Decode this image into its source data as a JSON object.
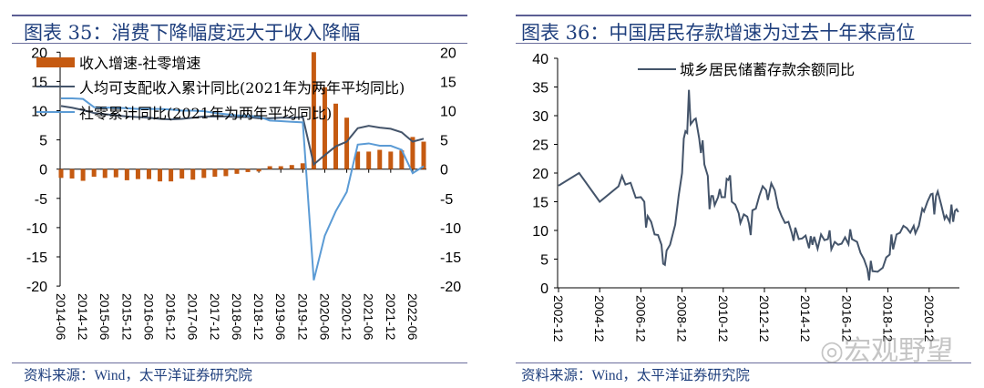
{
  "left_panel": {
    "title": "图表 35：消费下降幅度远大于收入降幅",
    "source": "资料来源：Wind，太平洋证券研究院"
  },
  "right_panel": {
    "title": "图表 36：中国居民存款增速为过去十年来高位",
    "source": "资料来源：Wind，太平洋证券研究院"
  },
  "watermark": "宏观野望",
  "colors": {
    "bar": "#c55a11",
    "income": "#44546a",
    "retail": "#5b9bd5",
    "deposit": "#44546a",
    "title": "#1f3f7d"
  },
  "chart_data": [
    {
      "type": "bar+line",
      "title": "",
      "xlabel": "",
      "ylabel": "",
      "ylim": [
        -20,
        20
      ],
      "y2lim": [
        -20,
        20
      ],
      "yticks": [
        "20",
        "15",
        "10",
        "5",
        "0",
        "-5",
        "-10",
        "-15",
        "-20"
      ],
      "x_tick_labels": [
        "2014-06",
        "2014-12",
        "2015-06",
        "2015-12",
        "2016-06",
        "2016-12",
        "2017-06",
        "2017-12",
        "2018-06",
        "2018-12",
        "2019-06",
        "2019-12",
        "2020-06",
        "2020-12",
        "2021-06",
        "2021-12",
        "2022-06"
      ],
      "x": [
        "2014-06",
        "2014-09",
        "2014-12",
        "2015-03",
        "2015-06",
        "2015-09",
        "2015-12",
        "2016-03",
        "2016-06",
        "2016-09",
        "2016-12",
        "2017-03",
        "2017-06",
        "2017-09",
        "2017-12",
        "2018-03",
        "2018-06",
        "2018-09",
        "2018-12",
        "2019-03",
        "2019-06",
        "2019-09",
        "2019-12",
        "2020-03",
        "2020-06",
        "2020-09",
        "2020-12",
        "2021-03",
        "2021-06",
        "2021-09",
        "2021-12",
        "2022-03",
        "2022-06",
        "2022-09"
      ],
      "legend_position": "top-left",
      "series": [
        {
          "name": "收入增速-社零增速",
          "type": "bar",
          "axis": "left",
          "values": [
            -1.5,
            -1.6,
            -2.0,
            -1.3,
            -1.5,
            -1.4,
            -1.9,
            -1.7,
            -1.7,
            -2.1,
            -2.1,
            -1.6,
            -1.8,
            -1.5,
            -1.3,
            -1.2,
            -0.8,
            -0.5,
            -0.4,
            0.5,
            0.5,
            0.7,
            1.0,
            20.0,
            14.0,
            11.2,
            8.8,
            3.0,
            3.0,
            3.3,
            3.0,
            3.2,
            5.5,
            4.7
          ]
        },
        {
          "name": "人均可支配收入累计同比(2021年为两年平均同比)",
          "type": "line",
          "axis": "left",
          "values": [
            10.8,
            10.5,
            10.1,
            9.6,
            9.4,
            9.2,
            9.0,
            8.9,
            8.8,
            8.6,
            8.5,
            8.6,
            8.8,
            9.0,
            9.0,
            9.0,
            8.9,
            8.9,
            8.7,
            8.7,
            8.8,
            8.8,
            8.9,
            0.8,
            2.4,
            3.9,
            4.7,
            7.0,
            7.4,
            7.1,
            6.9,
            6.3,
            4.7,
            5.2
          ]
        },
        {
          "name": "社零累计同比(2021年为两年平均同比)",
          "type": "line",
          "axis": "left",
          "values": [
            12.1,
            12.1,
            12.0,
            10.6,
            10.5,
            10.5,
            10.4,
            10.3,
            10.3,
            10.3,
            10.2,
            10.0,
            10.0,
            9.9,
            9.6,
            9.4,
            9.2,
            9.1,
            9.0,
            8.3,
            8.2,
            8.1,
            8.0,
            -19.0,
            -11.4,
            -7.2,
            -3.9,
            4.2,
            4.4,
            4.0,
            4.0,
            3.3,
            -0.7,
            0.5
          ]
        }
      ]
    },
    {
      "type": "line",
      "title": "",
      "xlabel": "",
      "ylabel": "",
      "ylim": [
        0,
        40
      ],
      "yticks": [
        "40",
        "35",
        "30",
        "25",
        "20",
        "15",
        "10",
        "5",
        "0"
      ],
      "x_tick_labels": [
        "2002-12",
        "2004-12",
        "2006-12",
        "2008-12",
        "2010-12",
        "2012-12",
        "2014-12",
        "2016-12",
        "2018-12",
        "2020-12"
      ],
      "legend_position": "top-center",
      "series": [
        {
          "name": "城乡居民储蓄存款余额同比",
          "points": [
            [
              "2002-12",
              17.8
            ],
            [
              "2003-12",
              20
            ],
            [
              "2004-12",
              15
            ],
            [
              "2005-11",
              17.7
            ],
            [
              "2006-01",
              19.5
            ],
            [
              "2006-03",
              18
            ],
            [
              "2006-06",
              18.3
            ],
            [
              "2006-09",
              15.7
            ],
            [
              "2006-12",
              15.8
            ],
            [
              "2007-02",
              15
            ],
            [
              "2007-03",
              10.5
            ],
            [
              "2007-04",
              12.5
            ],
            [
              "2007-06",
              11.5
            ],
            [
              "2007-08",
              9.3
            ],
            [
              "2007-10",
              9.2
            ],
            [
              "2007-12",
              7.5
            ],
            [
              "2008-01",
              4.2
            ],
            [
              "2008-02",
              4.0
            ],
            [
              "2008-03",
              6.5
            ],
            [
              "2008-05",
              7.5
            ],
            [
              "2008-08",
              11
            ],
            [
              "2008-10",
              16
            ],
            [
              "2008-12",
              20
            ],
            [
              "2009-01",
              26
            ],
            [
              "2009-02",
              27.3
            ],
            [
              "2009-03",
              27
            ],
            [
              "2009-04",
              34.5
            ],
            [
              "2009-05",
              28.5
            ],
            [
              "2009-07",
              29.3
            ],
            [
              "2009-08",
              29.5
            ],
            [
              "2009-10",
              26
            ],
            [
              "2009-11",
              23.5
            ],
            [
              "2009-12",
              25.7
            ],
            [
              "2010-01",
              21.5
            ],
            [
              "2010-03",
              19.5
            ],
            [
              "2010-04",
              13.7
            ],
            [
              "2010-05",
              16
            ],
            [
              "2010-06",
              16
            ],
            [
              "2010-07",
              14.4
            ],
            [
              "2010-09",
              15.8
            ],
            [
              "2010-10",
              17.2
            ],
            [
              "2010-11",
              15.8
            ],
            [
              "2011-01",
              15.8
            ],
            [
              "2011-02",
              19
            ],
            [
              "2011-03",
              18.8
            ],
            [
              "2011-04",
              19.6
            ],
            [
              "2011-05",
              15
            ],
            [
              "2011-07",
              14.5
            ],
            [
              "2011-09",
              13
            ],
            [
              "2011-10",
              11.3
            ],
            [
              "2011-12",
              12.8
            ],
            [
              "2012-02",
              12.4
            ],
            [
              "2012-03",
              11.2
            ],
            [
              "2012-04",
              9.2
            ],
            [
              "2012-05",
              13.5
            ],
            [
              "2012-07",
              13.8
            ],
            [
              "2012-09",
              16
            ],
            [
              "2012-11",
              17.7
            ],
            [
              "2013-01",
              17
            ],
            [
              "2013-02",
              15.3
            ],
            [
              "2013-04",
              18.2
            ],
            [
              "2013-06",
              17
            ],
            [
              "2013-08",
              14
            ],
            [
              "2013-10",
              12.5
            ],
            [
              "2013-12",
              11.3
            ],
            [
              "2014-02",
              11.5
            ],
            [
              "2014-04",
              9.5
            ],
            [
              "2014-05",
              8.2
            ],
            [
              "2014-06",
              10.5
            ],
            [
              "2014-08",
              8.5
            ],
            [
              "2014-10",
              8.6
            ],
            [
              "2014-12",
              9.1
            ],
            [
              "2015-02",
              6.9
            ],
            [
              "2015-03",
              9
            ],
            [
              "2015-04",
              7.5
            ],
            [
              "2015-05",
              8.9
            ],
            [
              "2015-07",
              6.8
            ],
            [
              "2015-09",
              9.3
            ],
            [
              "2015-11",
              8.3
            ],
            [
              "2016-01",
              8.5
            ],
            [
              "2016-02",
              10
            ],
            [
              "2016-03",
              6.7
            ],
            [
              "2016-05",
              8
            ],
            [
              "2016-07",
              7.5
            ],
            [
              "2016-09",
              7.7
            ],
            [
              "2016-11",
              8.8
            ],
            [
              "2017-01",
              7.6
            ],
            [
              "2017-02",
              10.2
            ],
            [
              "2017-03",
              8.5
            ],
            [
              "2017-06",
              8
            ],
            [
              "2017-08",
              6.1
            ],
            [
              "2017-10",
              5
            ],
            [
              "2017-12",
              3.3
            ],
            [
              "2018-01",
              1.3
            ],
            [
              "2018-02",
              4.7
            ],
            [
              "2018-03",
              2.9
            ],
            [
              "2018-06",
              2.8
            ],
            [
              "2018-09",
              3.5
            ],
            [
              "2018-11",
              5.3
            ],
            [
              "2019-01",
              5.8
            ],
            [
              "2019-02",
              9.3
            ],
            [
              "2019-03",
              6.7
            ],
            [
              "2019-05",
              9.3
            ],
            [
              "2019-07",
              9.6
            ],
            [
              "2019-09",
              10.8
            ],
            [
              "2019-11",
              10.4
            ],
            [
              "2020-01",
              9.6
            ],
            [
              "2020-03",
              10.8
            ],
            [
              "2020-04",
              9.5
            ],
            [
              "2020-06",
              10.8
            ],
            [
              "2020-08",
              13.8
            ],
            [
              "2020-09",
              13.3
            ],
            [
              "2020-11",
              15
            ],
            [
              "2021-01",
              16.3
            ],
            [
              "2021-02",
              16.4
            ],
            [
              "2021-03",
              12.8
            ],
            [
              "2021-04",
              16
            ],
            [
              "2021-05",
              16.8
            ],
            [
              "2021-07",
              14.5
            ],
            [
              "2021-09",
              12
            ],
            [
              "2021-10",
              12.6
            ],
            [
              "2021-12",
              11.5
            ],
            [
              "2022-01",
              14.5
            ],
            [
              "2022-02",
              11.5
            ],
            [
              "2022-03",
              13.4
            ],
            [
              "2022-04",
              13.7
            ],
            [
              "2022-05",
              13.2
            ]
          ]
        }
      ]
    }
  ]
}
